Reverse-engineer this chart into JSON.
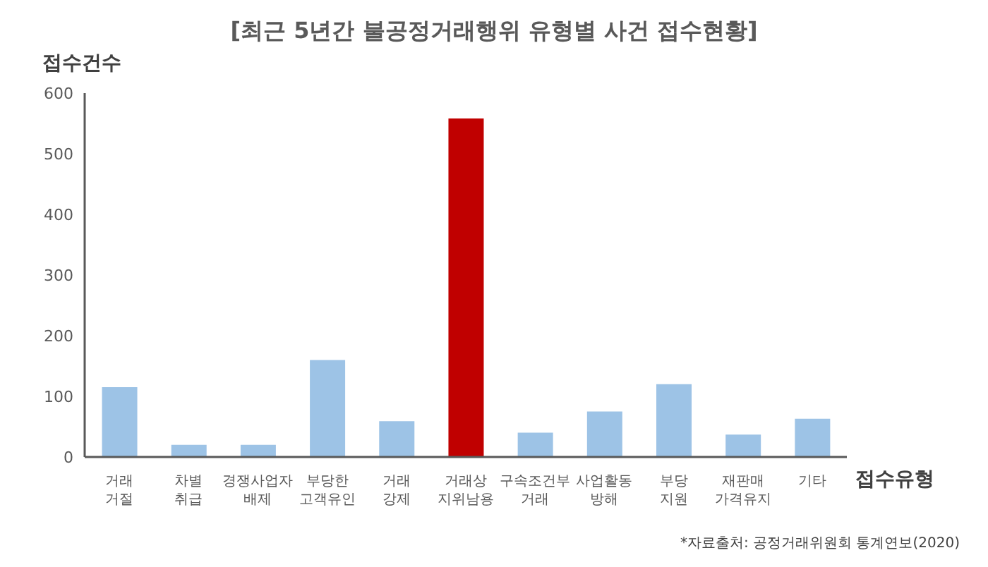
{
  "chart_data": {
    "type": "bar",
    "title": "[최근 5년간 불공정거래행위 유형별 사건 접수현황]",
    "ylabel": "접수건수",
    "xlabel": "접수유형",
    "categories": [
      "거래\n거절",
      "차별\n취급",
      "경쟁사업자\n배제",
      "부당한\n고객유인",
      "거래\n강제",
      "거래상\n지위남용",
      "구속조건부\n거래",
      "사업활동\n방해",
      "부당\n지원",
      "재판매\n가격유지",
      "기타"
    ],
    "values": [
      115,
      20,
      20,
      160,
      59,
      558,
      40,
      75,
      120,
      37,
      63
    ],
    "colors": [
      "#9dc3e6",
      "#9dc3e6",
      "#9dc3e6",
      "#9dc3e6",
      "#9dc3e6",
      "#c00000",
      "#9dc3e6",
      "#9dc3e6",
      "#9dc3e6",
      "#9dc3e6",
      "#9dc3e6"
    ],
    "ylim": [
      0,
      600
    ],
    "yticks": [
      0,
      100,
      200,
      300,
      400,
      500,
      600
    ],
    "grid": false,
    "legend": false,
    "annotations": [
      "*자료출처: 공정거래위원회 통계연보(2020)"
    ]
  }
}
